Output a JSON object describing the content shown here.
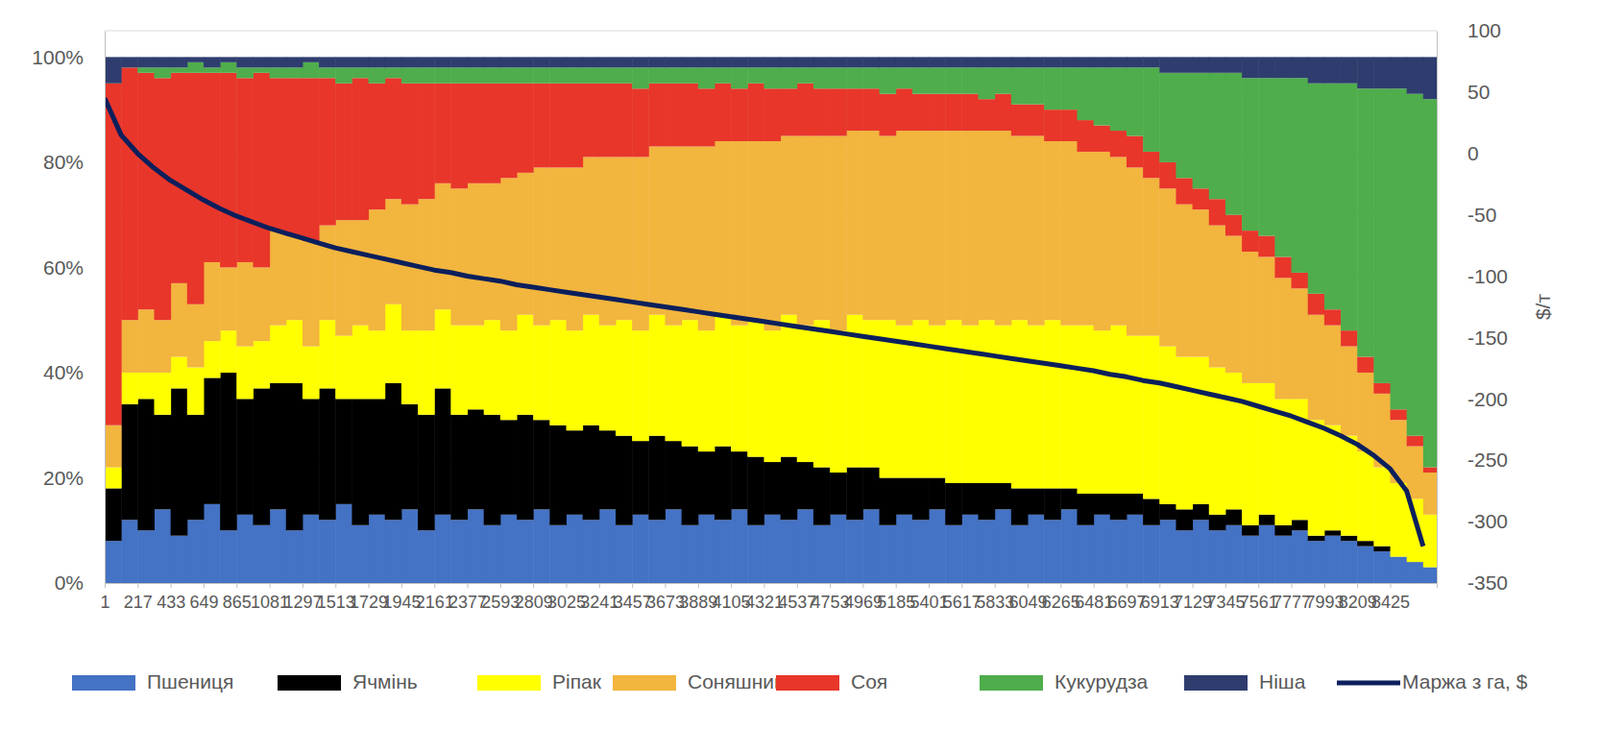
{
  "chart_data": {
    "type": "bar",
    "stacked": true,
    "grid": true,
    "legend": "bottom",
    "y2_label": "$/т",
    "x": [
      1,
      109,
      217,
      325,
      433,
      541,
      649,
      757,
      865,
      973,
      1081,
      1189,
      1297,
      1405,
      1513,
      1621,
      1729,
      1837,
      1945,
      2053,
      2161,
      2269,
      2377,
      2485,
      2593,
      2701,
      2809,
      2917,
      3025,
      3133,
      3241,
      3349,
      3457,
      3565,
      3673,
      3781,
      3889,
      3997,
      4105,
      4213,
      4321,
      4429,
      4537,
      4645,
      4753,
      4861,
      4969,
      5077,
      5185,
      5293,
      5401,
      5509,
      5617,
      5725,
      5833,
      5941,
      6049,
      6157,
      6265,
      6373,
      6481,
      6589,
      6697,
      6805,
      6913,
      7021,
      7129,
      7237,
      7345,
      7453,
      7561,
      7669,
      7777,
      7885,
      7993,
      8101,
      8209,
      8317,
      8425,
      8533,
      8641
    ],
    "xlim": [
      1,
      8730
    ],
    "xticks": [
      1,
      217,
      433,
      649,
      865,
      1081,
      1297,
      1513,
      1729,
      1945,
      2161,
      2377,
      2593,
      2809,
      3025,
      3241,
      3457,
      3673,
      3889,
      4105,
      4321,
      4537,
      4753,
      4969,
      5185,
      5401,
      5617,
      5833,
      6049,
      6265,
      6481,
      6697,
      6913,
      7129,
      7345,
      7561,
      7777,
      7993,
      8209,
      8425
    ],
    "ylim": [
      0,
      105
    ],
    "yticks": [
      {
        "value": 0,
        "label": "0%"
      },
      {
        "value": 20,
        "label": "20%"
      },
      {
        "value": 40,
        "label": "40%"
      },
      {
        "value": 60,
        "label": "60%"
      },
      {
        "value": 80,
        "label": "80%"
      },
      {
        "value": 100,
        "label": "100%"
      }
    ],
    "y2lim": [
      -350,
      100
    ],
    "y2ticks": [
      -350,
      -300,
      -250,
      -200,
      -150,
      -100,
      -50,
      0,
      50,
      100
    ],
    "series": [
      {
        "name": "Пшениця",
        "color": "#4472c4",
        "values": [
          8,
          12,
          10,
          14,
          9,
          12,
          15,
          10,
          13,
          11,
          14,
          10,
          13,
          12,
          15,
          11,
          13,
          12,
          14,
          10,
          13,
          12,
          14,
          11,
          13,
          12,
          14,
          11,
          13,
          12,
          14,
          11,
          13,
          12,
          14,
          11,
          13,
          12,
          14,
          11,
          13,
          12,
          14,
          11,
          13,
          12,
          14,
          11,
          13,
          12,
          14,
          11,
          13,
          12,
          14,
          11,
          13,
          12,
          14,
          11,
          13,
          12,
          13,
          11,
          12,
          10,
          12,
          10,
          11,
          9,
          11,
          9,
          10,
          8,
          9,
          8,
          7,
          6,
          5,
          4,
          3
        ]
      },
      {
        "name": "Ячмінь",
        "color": "#000000",
        "values": [
          10,
          22,
          25,
          18,
          28,
          20,
          24,
          30,
          22,
          26,
          24,
          28,
          22,
          25,
          20,
          24,
          22,
          26,
          20,
          22,
          24,
          20,
          19,
          21,
          18,
          20,
          17,
          19,
          16,
          18,
          15,
          17,
          14,
          16,
          13,
          15,
          12,
          14,
          11,
          13,
          10,
          12,
          9,
          11,
          8,
          10,
          8,
          9,
          7,
          8,
          6,
          8,
          6,
          7,
          5,
          7,
          5,
          6,
          4,
          6,
          4,
          5,
          4,
          5,
          3,
          4,
          3,
          3,
          3,
          2,
          2,
          2,
          2,
          1,
          1,
          1,
          1,
          1,
          0,
          0,
          0
        ]
      },
      {
        "name": "Ріпак",
        "color": "#ffff00",
        "values": [
          4,
          6,
          5,
          8,
          6,
          9,
          7,
          8,
          10,
          9,
          11,
          12,
          10,
          13,
          12,
          14,
          13,
          15,
          14,
          16,
          15,
          17,
          16,
          18,
          17,
          19,
          18,
          20,
          19,
          21,
          20,
          22,
          21,
          23,
          22,
          24,
          23,
          25,
          24,
          26,
          25,
          27,
          26,
          28,
          27,
          29,
          28,
          30,
          29,
          30,
          29,
          31,
          30,
          31,
          30,
          32,
          31,
          32,
          31,
          32,
          31,
          32,
          30,
          31,
          30,
          29,
          28,
          28,
          26,
          27,
          25,
          24,
          23,
          22,
          20,
          19,
          17,
          15,
          14,
          12,
          10
        ]
      },
      {
        "name": "Соняшник",
        "color": "#f2b53e",
        "values": [
          8,
          10,
          12,
          10,
          14,
          12,
          15,
          12,
          16,
          14,
          18,
          16,
          20,
          18,
          22,
          20,
          23,
          20,
          24,
          25,
          24,
          26,
          27,
          26,
          29,
          27,
          30,
          29,
          31,
          30,
          32,
          31,
          33,
          32,
          34,
          33,
          35,
          33,
          35,
          34,
          36,
          34,
          36,
          35,
          37,
          35,
          36,
          35,
          37,
          36,
          37,
          36,
          37,
          36,
          37,
          35,
          36,
          34,
          35,
          33,
          34,
          32,
          32,
          30,
          30,
          29,
          28,
          27,
          26,
          25,
          24,
          23,
          21,
          20,
          19,
          17,
          15,
          14,
          12,
          10,
          8
        ]
      },
      {
        "name": "Соя",
        "color": "#e8362a",
        "values": [
          65,
          48,
          45,
          46,
          40,
          44,
          36,
          37,
          35,
          37,
          29,
          30,
          31,
          28,
          26,
          27,
          24,
          23,
          23,
          22,
          19,
          20,
          19,
          19,
          18,
          17,
          16,
          16,
          16,
          14,
          14,
          14,
          13,
          12,
          12,
          12,
          11,
          11,
          10,
          11,
          10,
          9,
          10,
          9,
          9,
          8,
          8,
          8,
          8,
          7,
          7,
          7,
          7,
          6,
          7,
          6,
          6,
          6,
          6,
          6,
          5,
          5,
          6,
          5,
          5,
          5,
          4,
          5,
          4,
          4,
          4,
          4,
          3,
          4,
          3,
          3,
          3,
          2,
          2,
          2,
          1
        ]
      },
      {
        "name": "Кукурудза",
        "color": "#4fad4c",
        "values": [
          0,
          0,
          1,
          2,
          1,
          2,
          1,
          2,
          2,
          1,
          2,
          2,
          3,
          2,
          3,
          2,
          3,
          2,
          3,
          3,
          3,
          3,
          3,
          3,
          3,
          3,
          3,
          3,
          3,
          3,
          3,
          3,
          4,
          3,
          3,
          3,
          4,
          3,
          4,
          3,
          4,
          4,
          3,
          4,
          4,
          4,
          4,
          5,
          4,
          5,
          5,
          5,
          5,
          6,
          5,
          7,
          7,
          8,
          8,
          10,
          11,
          12,
          13,
          16,
          17,
          20,
          22,
          24,
          27,
          29,
          30,
          34,
          37,
          40,
          43,
          47,
          51,
          56,
          61,
          65,
          70
        ]
      },
      {
        "name": "Ніша",
        "color": "#2e3d6e",
        "values": [
          5,
          2,
          2,
          2,
          2,
          1,
          2,
          1,
          2,
          2,
          2,
          2,
          1,
          2,
          2,
          2,
          2,
          2,
          2,
          2,
          2,
          2,
          2,
          2,
          2,
          2,
          2,
          2,
          2,
          2,
          2,
          2,
          2,
          2,
          2,
          2,
          2,
          2,
          2,
          2,
          2,
          2,
          2,
          2,
          2,
          2,
          2,
          2,
          2,
          2,
          2,
          2,
          2,
          2,
          2,
          2,
          2,
          2,
          2,
          2,
          2,
          2,
          2,
          2,
          3,
          3,
          3,
          3,
          3,
          4,
          4,
          4,
          4,
          5,
          5,
          5,
          6,
          6,
          6,
          7,
          8
        ]
      },
      {
        "name": "Маржа з га, $",
        "color": "#0b1f5c",
        "type": "line",
        "axis": "y2",
        "values": [
          45,
          15,
          0,
          -12,
          -22,
          -30,
          -38,
          -45,
          -51,
          -56,
          -61,
          -65,
          -69,
          -73,
          -77,
          -80,
          -83,
          -86,
          -89,
          -92,
          -95,
          -97,
          -100,
          -102,
          -104,
          -107,
          -109,
          -111,
          -113,
          -115,
          -117,
          -119,
          -121,
          -123,
          -125,
          -127,
          -129,
          -131,
          -133,
          -135,
          -137,
          -139,
          -141,
          -143,
          -145,
          -147,
          -149,
          -151,
          -153,
          -155,
          -157,
          -159,
          -161,
          -163,
          -165,
          -167,
          -169,
          -171,
          -173,
          -175,
          -177,
          -180,
          -182,
          -185,
          -187,
          -190,
          -193,
          -196,
          -199,
          -202,
          -206,
          -210,
          -214,
          -219,
          -224,
          -230,
          -237,
          -246,
          -257,
          -275,
          -320
        ]
      }
    ]
  }
}
